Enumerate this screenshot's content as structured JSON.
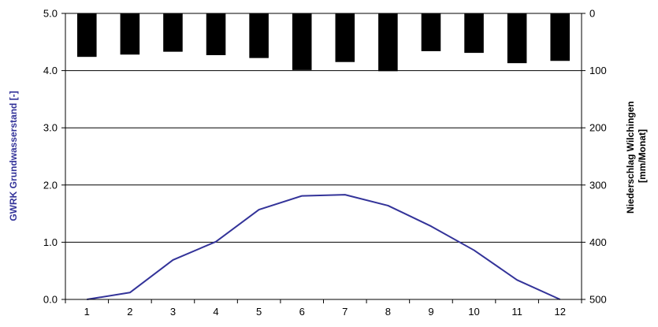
{
  "chart_data": {
    "type": "bar+line",
    "x": [
      1,
      2,
      3,
      4,
      5,
      6,
      7,
      8,
      9,
      10,
      11,
      12
    ],
    "x_ticks": [
      "1",
      "2",
      "3",
      "4",
      "5",
      "6",
      "7",
      "8",
      "9",
      "10",
      "11",
      "12"
    ],
    "series": [
      {
        "type": "line",
        "axis": "left",
        "color": "#333399",
        "values": [
          0.0,
          0.12,
          0.69,
          1.01,
          1.57,
          1.81,
          1.83,
          1.64,
          1.28,
          0.86,
          0.34,
          0.0
        ]
      },
      {
        "type": "bar",
        "axis": "right",
        "axis_reversed": true,
        "color": "#000000",
        "values": [
          76,
          72,
          67,
          73,
          78,
          99,
          85,
          101,
          66,
          69,
          87,
          83
        ]
      }
    ],
    "yleft": {
      "label": "GWRK Grundwasserstand [-]",
      "ylim": [
        0.0,
        5.0
      ],
      "ticks": [
        "0.0",
        "1.0",
        "2.0",
        "3.0",
        "4.0",
        "5.0"
      ],
      "color": "#333399"
    },
    "yright": {
      "label_line1": "Niederschlag Wilchingen",
      "label_line2": "[mm/Monat]",
      "ylim": [
        500,
        0
      ],
      "ticks": [
        "500",
        "400",
        "300",
        "200",
        "100",
        "0"
      ],
      "color": "#000000"
    },
    "grid": "horizontal",
    "legend": "none"
  }
}
